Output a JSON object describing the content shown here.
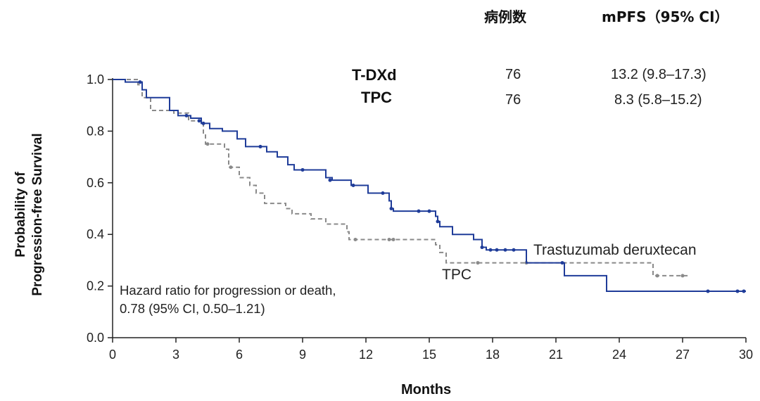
{
  "header": {
    "col_n": "病例数",
    "col_mpfs": "mPFS（95% CI）"
  },
  "table": [
    {
      "arm": "T-DXd",
      "n": "76",
      "mpfs": "13.2 (9.8–17.3)"
    },
    {
      "arm": "TPC",
      "n": "76",
      "mpfs": "8.3 (5.8–15.2)"
    }
  ],
  "annotation": {
    "line1": "Hazard ratio for progression or death,",
    "line2": "0.78 (95% CI, 0.50–1.21)"
  },
  "colors": {
    "tdxd": "#1f3c99",
    "tpc": "#8a8a8a",
    "axis": "#222222"
  },
  "chart_data": {
    "type": "line",
    "subtype": "kaplan-meier-step",
    "title": "",
    "xlabel": "Months",
    "ylabel": [
      "Probability of",
      "Progression-free Survival"
    ],
    "xlim": [
      0,
      30
    ],
    "ylim": [
      0,
      1.0
    ],
    "xticks": [
      0,
      3,
      6,
      9,
      12,
      15,
      18,
      21,
      24,
      27,
      30
    ],
    "yticks": [
      0.0,
      0.2,
      0.4,
      0.6,
      0.8,
      1.0
    ],
    "ytick_labels": [
      "0.0",
      "0.2",
      "0.4",
      "0.6",
      "0.8",
      "1.0"
    ],
    "series": [
      {
        "name": "Trastuzumab deruxtecan",
        "style": "solid",
        "steps": [
          [
            0,
            1.0
          ],
          [
            0.6,
            0.99
          ],
          [
            1.4,
            0.96
          ],
          [
            1.6,
            0.93
          ],
          [
            2.7,
            0.88
          ],
          [
            3.1,
            0.86
          ],
          [
            3.7,
            0.85
          ],
          [
            4.2,
            0.83
          ],
          [
            4.6,
            0.81
          ],
          [
            5.2,
            0.8
          ],
          [
            5.9,
            0.77
          ],
          [
            6.3,
            0.74
          ],
          [
            7.3,
            0.72
          ],
          [
            7.8,
            0.7
          ],
          [
            8.3,
            0.67
          ],
          [
            8.6,
            0.65
          ],
          [
            10.1,
            0.62
          ],
          [
            10.4,
            0.61
          ],
          [
            11.3,
            0.59
          ],
          [
            12.1,
            0.56
          ],
          [
            13.1,
            0.53
          ],
          [
            13.2,
            0.5
          ],
          [
            13.3,
            0.49
          ],
          [
            15.3,
            0.47
          ],
          [
            15.4,
            0.45
          ],
          [
            15.5,
            0.43
          ],
          [
            16.1,
            0.4
          ],
          [
            17.1,
            0.38
          ],
          [
            17.5,
            0.35
          ],
          [
            17.7,
            0.34
          ],
          [
            19.6,
            0.29
          ],
          [
            21.4,
            0.24
          ],
          [
            23.4,
            0.18
          ]
        ],
        "end_x": 30,
        "censor": [
          [
            1.3,
            0.99
          ],
          [
            3.5,
            0.86
          ],
          [
            4.1,
            0.84
          ],
          [
            4.3,
            0.83
          ],
          [
            7.0,
            0.74
          ],
          [
            9.0,
            0.65
          ],
          [
            10.3,
            0.61
          ],
          [
            11.4,
            0.59
          ],
          [
            12.8,
            0.56
          ],
          [
            13.2,
            0.5
          ],
          [
            14.5,
            0.49
          ],
          [
            15.0,
            0.49
          ],
          [
            15.4,
            0.45
          ],
          [
            17.5,
            0.35
          ],
          [
            17.9,
            0.34
          ],
          [
            18.2,
            0.34
          ],
          [
            18.6,
            0.34
          ],
          [
            19.0,
            0.34
          ],
          [
            21.3,
            0.29
          ],
          [
            28.2,
            0.18
          ],
          [
            29.6,
            0.18
          ],
          [
            29.9,
            0.18
          ]
        ]
      },
      {
        "name": "TPC",
        "style": "dashed",
        "steps": [
          [
            0,
            1.0
          ],
          [
            1.2,
            0.98
          ],
          [
            1.4,
            0.93
          ],
          [
            1.8,
            0.88
          ],
          [
            2.9,
            0.87
          ],
          [
            3.6,
            0.84
          ],
          [
            4.3,
            0.79
          ],
          [
            4.4,
            0.75
          ],
          [
            5.3,
            0.73
          ],
          [
            5.5,
            0.66
          ],
          [
            6.0,
            0.62
          ],
          [
            6.5,
            0.59
          ],
          [
            6.8,
            0.56
          ],
          [
            7.2,
            0.52
          ],
          [
            8.2,
            0.5
          ],
          [
            8.5,
            0.48
          ],
          [
            9.4,
            0.46
          ],
          [
            10.1,
            0.44
          ],
          [
            11.1,
            0.41
          ],
          [
            11.2,
            0.38
          ],
          [
            15.3,
            0.36
          ],
          [
            15.5,
            0.33
          ],
          [
            15.8,
            0.29
          ],
          [
            25.6,
            0.24
          ]
        ],
        "end_x": 27.3,
        "censor": [
          [
            4.5,
            0.75
          ],
          [
            5.6,
            0.66
          ],
          [
            11.5,
            0.38
          ],
          [
            13.1,
            0.38
          ],
          [
            13.3,
            0.38
          ],
          [
            17.3,
            0.29
          ],
          [
            19.6,
            0.29
          ],
          [
            25.8,
            0.24
          ],
          [
            27.0,
            0.24
          ]
        ]
      }
    ],
    "curve_labels": [
      {
        "text": "Trastuzumab deruxtecan",
        "series": 0
      },
      {
        "text": "TPC",
        "series": 1
      }
    ]
  }
}
